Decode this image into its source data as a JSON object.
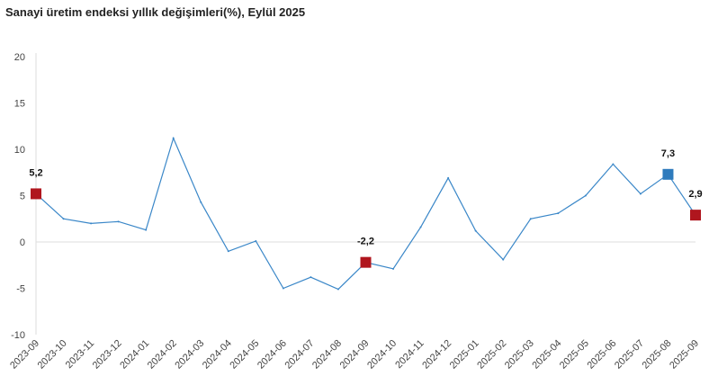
{
  "chart_data": {
    "type": "line",
    "title": "Sanayi üretim endeksi yıllık değişimleri(%), Eylül 2025",
    "xlabel": "",
    "ylabel": "",
    "ylim": [
      -10,
      20
    ],
    "yticks": [
      20,
      15,
      10,
      5,
      0,
      -5,
      -10
    ],
    "categories": [
      "2023-09",
      "2023-10",
      "2023-11",
      "2023-12",
      "2024-01",
      "2024-02",
      "2024-03",
      "2024-04",
      "2024-05",
      "2024-06",
      "2024-07",
      "2024-08",
      "2024-09",
      "2024-10",
      "2024-11",
      "2024-12",
      "2025-01",
      "2025-02",
      "2025-03",
      "2025-04",
      "2025-05",
      "2025-06",
      "2025-07",
      "2025-08",
      "2025-09"
    ],
    "values": [
      5.2,
      2.5,
      2.0,
      2.2,
      1.3,
      11.2,
      4.3,
      -1.0,
      0.1,
      -5.0,
      -3.8,
      -5.1,
      -2.2,
      -2.9,
      1.6,
      6.9,
      1.2,
      -1.9,
      2.5,
      3.1,
      5.0,
      8.4,
      5.2,
      7.3,
      2.9
    ],
    "highlights": [
      {
        "index": 0,
        "label": "5,2",
        "color": "#b0161e"
      },
      {
        "index": 12,
        "label": "-2,2",
        "color": "#b0161e"
      },
      {
        "index": 23,
        "label": "7,3",
        "color": "#2e7bbd"
      },
      {
        "index": 24,
        "label": "2,9",
        "color": "#b0161e"
      }
    ],
    "line_color": "#3a87c8",
    "grid": false
  }
}
